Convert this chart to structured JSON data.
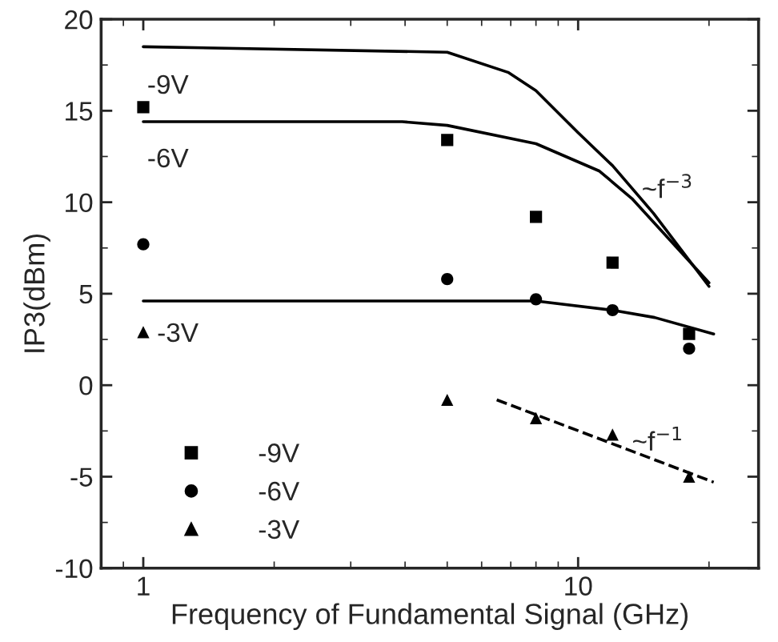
{
  "chart_data": {
    "type": "scatter",
    "xlabel": "Frequency of Fundamental Signal (GHz)",
    "ylabel": "IP3(dBm)",
    "log": "x",
    "xlim": [
      0.8,
      26
    ],
    "xticks": [
      1,
      10
    ],
    "ylim": [
      -10,
      20
    ],
    "yticks": [
      -10,
      -5,
      0,
      5,
      10,
      15,
      20
    ],
    "grid": false,
    "legend": "bottom left",
    "series": [
      {
        "name": "-9V",
        "marker": "square",
        "color": "#000000",
        "x": [
          1,
          5,
          8,
          12,
          18
        ],
        "values": [
          15.2,
          13.4,
          9.2,
          6.7,
          2.8
        ]
      },
      {
        "name": "-6V",
        "marker": "circle",
        "color": "#000000",
        "x": [
          1,
          5,
          8,
          12,
          18
        ],
        "values": [
          7.7,
          5.8,
          4.7,
          4.1,
          2.0
        ]
      },
      {
        "name": "-3V",
        "marker": "triangle",
        "color": "#000000",
        "x": [
          1,
          5,
          8,
          12,
          18
        ],
        "values": [
          2.9,
          -0.8,
          -1.8,
          -2.7,
          -5.0
        ]
      },
      {
        "type": "line",
        "line_style": "solid",
        "color": "#000000",
        "x": [
          1,
          5,
          6.9,
          8,
          10,
          12,
          14.9,
          20
        ],
        "values": [
          18.5,
          18.2,
          17.1,
          16.1,
          13.8,
          12.0,
          9.4,
          5.4
        ]
      },
      {
        "type": "line",
        "line_style": "solid",
        "color": "#000000",
        "x": [
          1,
          3.94,
          5,
          8,
          11.2,
          13.3,
          20
        ],
        "values": [
          14.4,
          14.4,
          14.2,
          13.2,
          11.7,
          10.2,
          5.6
        ]
      },
      {
        "type": "line",
        "line_style": "solid",
        "color": "#000000",
        "x": [
          1,
          8,
          12,
          15,
          20.5
        ],
        "values": [
          4.6,
          4.6,
          4.1,
          3.7,
          2.8
        ]
      },
      {
        "type": "line",
        "line_style": "dashed",
        "color": "#000000",
        "x": [
          6.5,
          20.5
        ],
        "values": [
          -0.8,
          -5.3
        ]
      }
    ],
    "annotations": [
      "-9V",
      "-6V",
      "-3V",
      {
        "text": "~f$^{−3}$",
        "x": 14.0,
        "y": 10.6
      },
      {
        "text": "~f$^{−1}$",
        "x": 13.3,
        "y": -3.2
      }
    ]
  }
}
